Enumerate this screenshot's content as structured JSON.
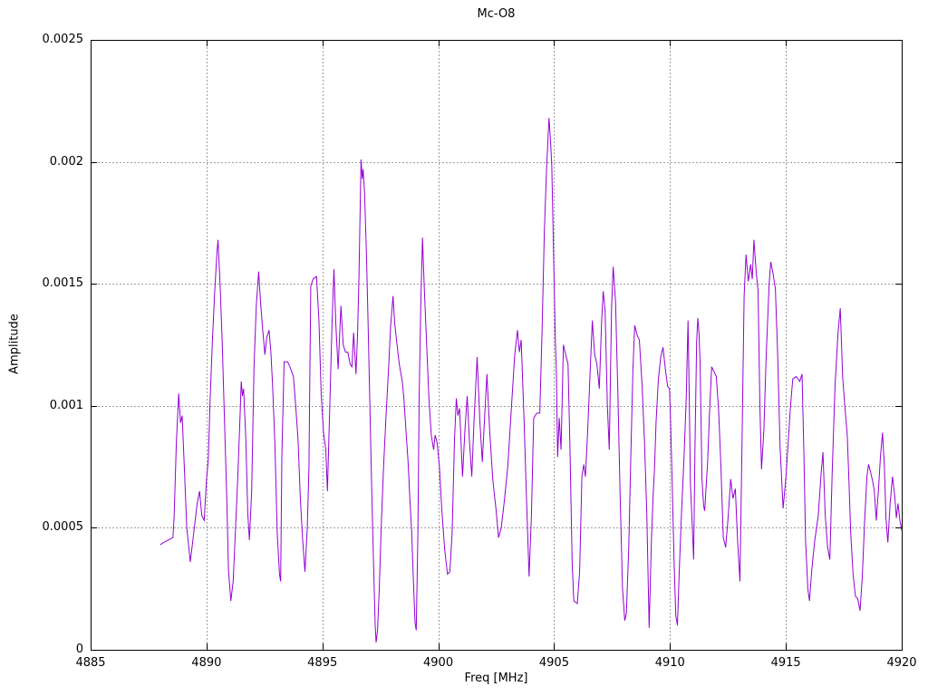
{
  "title": "Mc-O8",
  "chart_data": {
    "type": "line",
    "title": "Mc-O8",
    "xlabel": "Freq [MHz]",
    "ylabel": "Amplitude",
    "xlim": [
      4885,
      4920
    ],
    "ylim": [
      0,
      0.0025
    ],
    "x_ticks": [
      4885,
      4890,
      4895,
      4900,
      4905,
      4910,
      4915,
      4920
    ],
    "y_ticks": [
      0,
      0.0005,
      0.001,
      0.0015,
      0.002,
      0.0025
    ],
    "y_tick_labels": [
      "0",
      "0.0005",
      "0.001",
      "0.0015",
      "0.002",
      "0.0025"
    ],
    "grid": true,
    "grid_color": "#9e9e9e",
    "border_color": "#000000",
    "legend": false,
    "line_color": "#9400d3",
    "points": [
      [
        4888.0,
        0.00043
      ],
      [
        4888.15,
        0.00044
      ],
      [
        4888.35,
        0.00045
      ],
      [
        4888.55,
        0.00046
      ],
      [
        4888.6,
        0.00054
      ],
      [
        4888.7,
        0.00085
      ],
      [
        4888.8,
        0.00105
      ],
      [
        4888.88,
        0.00093
      ],
      [
        4888.95,
        0.00096
      ],
      [
        4889.05,
        0.00073
      ],
      [
        4889.15,
        0.0005
      ],
      [
        4889.3,
        0.00036
      ],
      [
        4889.45,
        0.00048
      ],
      [
        4889.6,
        0.0006
      ],
      [
        4889.7,
        0.00065
      ],
      [
        4889.8,
        0.00055
      ],
      [
        4889.9,
        0.00053
      ],
      [
        4890.0,
        0.0007
      ],
      [
        4890.08,
        0.00078
      ],
      [
        4890.15,
        0.00101
      ],
      [
        4890.25,
        0.00126
      ],
      [
        4890.35,
        0.00146
      ],
      [
        4890.45,
        0.00163
      ],
      [
        4890.5,
        0.00168
      ],
      [
        4890.58,
        0.00151
      ],
      [
        4890.68,
        0.00126
      ],
      [
        4890.78,
        0.00093
      ],
      [
        4890.88,
        0.0006
      ],
      [
        4890.95,
        0.00033
      ],
      [
        4891.05,
        0.0002
      ],
      [
        4891.15,
        0.00028
      ],
      [
        4891.25,
        0.00049
      ],
      [
        4891.35,
        0.00071
      ],
      [
        4891.45,
        0.00096
      ],
      [
        4891.5,
        0.0011
      ],
      [
        4891.55,
        0.00104
      ],
      [
        4891.6,
        0.00107
      ],
      [
        4891.7,
        0.00086
      ],
      [
        4891.78,
        0.00056
      ],
      [
        4891.85,
        0.00045
      ],
      [
        4891.95,
        0.00065
      ],
      [
        4892.05,
        0.00116
      ],
      [
        4892.15,
        0.00141
      ],
      [
        4892.25,
        0.00155
      ],
      [
        4892.33,
        0.00143
      ],
      [
        4892.42,
        0.00132
      ],
      [
        4892.52,
        0.00121
      ],
      [
        4892.6,
        0.00128
      ],
      [
        4892.7,
        0.00131
      ],
      [
        4892.78,
        0.00122
      ],
      [
        4892.85,
        0.00109
      ],
      [
        4892.95,
        0.00085
      ],
      [
        4893.05,
        0.00048
      ],
      [
        4893.15,
        0.00031
      ],
      [
        4893.2,
        0.00028
      ],
      [
        4893.25,
        0.00079
      ],
      [
        4893.35,
        0.00118
      ],
      [
        4893.5,
        0.00118
      ],
      [
        4893.6,
        0.00116
      ],
      [
        4893.75,
        0.00112
      ],
      [
        4893.85,
        0.001
      ],
      [
        4893.95,
        0.00086
      ],
      [
        4894.05,
        0.00062
      ],
      [
        4894.15,
        0.00045
      ],
      [
        4894.25,
        0.00032
      ],
      [
        4894.35,
        0.0005
      ],
      [
        4894.42,
        0.00075
      ],
      [
        4894.5,
        0.00149
      ],
      [
        4894.6,
        0.00152
      ],
      [
        4894.75,
        0.00153
      ],
      [
        4894.85,
        0.00135
      ],
      [
        4894.95,
        0.00105
      ],
      [
        4895.05,
        0.00089
      ],
      [
        4895.15,
        0.00082
      ],
      [
        4895.22,
        0.00065
      ],
      [
        4895.32,
        0.001
      ],
      [
        4895.42,
        0.00135
      ],
      [
        4895.5,
        0.00156
      ],
      [
        4895.58,
        0.00134
      ],
      [
        4895.68,
        0.00115
      ],
      [
        4895.8,
        0.00141
      ],
      [
        4895.9,
        0.00125
      ],
      [
        4896.0,
        0.00122
      ],
      [
        4896.1,
        0.00122
      ],
      [
        4896.2,
        0.00117
      ],
      [
        4896.28,
        0.00116
      ],
      [
        4896.35,
        0.0013
      ],
      [
        4896.45,
        0.00113
      ],
      [
        4896.52,
        0.0013
      ],
      [
        4896.58,
        0.00153
      ],
      [
        4896.62,
        0.00174
      ],
      [
        4896.67,
        0.00201
      ],
      [
        4896.72,
        0.00193
      ],
      [
        4896.76,
        0.00197
      ],
      [
        4896.82,
        0.00187
      ],
      [
        4896.9,
        0.00163
      ],
      [
        4896.97,
        0.00135
      ],
      [
        4897.05,
        0.00101
      ],
      [
        4897.12,
        0.0007
      ],
      [
        4897.2,
        0.00038
      ],
      [
        4897.28,
        0.0001
      ],
      [
        4897.32,
        3e-05
      ],
      [
        4897.38,
        8e-05
      ],
      [
        4897.45,
        0.00024
      ],
      [
        4897.55,
        0.00053
      ],
      [
        4897.65,
        0.00077
      ],
      [
        4897.75,
        0.00096
      ],
      [
        4897.85,
        0.00114
      ],
      [
        4897.95,
        0.00133
      ],
      [
        4898.05,
        0.00145
      ],
      [
        4898.12,
        0.00134
      ],
      [
        4898.2,
        0.00127
      ],
      [
        4898.32,
        0.00117
      ],
      [
        4898.45,
        0.0011
      ],
      [
        4898.52,
        0.00103
      ],
      [
        4898.62,
        0.00088
      ],
      [
        4898.7,
        0.00077
      ],
      [
        4898.78,
        0.00061
      ],
      [
        4898.85,
        0.00049
      ],
      [
        4898.92,
        0.0003
      ],
      [
        4899.0,
        0.00011
      ],
      [
        4899.05,
        8e-05
      ],
      [
        4899.12,
        0.00047
      ],
      [
        4899.18,
        0.00106
      ],
      [
        4899.25,
        0.00143
      ],
      [
        4899.32,
        0.00169
      ],
      [
        4899.4,
        0.00148
      ],
      [
        4899.5,
        0.00125
      ],
      [
        4899.6,
        0.00103
      ],
      [
        4899.7,
        0.00088
      ],
      [
        4899.8,
        0.00082
      ],
      [
        4899.87,
        0.00088
      ],
      [
        4899.95,
        0.00085
      ],
      [
        4900.05,
        0.00075
      ],
      [
        4900.15,
        0.00058
      ],
      [
        4900.28,
        0.00041
      ],
      [
        4900.4,
        0.00031
      ],
      [
        4900.5,
        0.00032
      ],
      [
        4900.6,
        0.00048
      ],
      [
        4900.7,
        0.00086
      ],
      [
        4900.78,
        0.00103
      ],
      [
        4900.85,
        0.00096
      ],
      [
        4900.92,
        0.00099
      ],
      [
        4901.05,
        0.00071
      ],
      [
        4901.15,
        0.0009
      ],
      [
        4901.25,
        0.00104
      ],
      [
        4901.35,
        0.00085
      ],
      [
        4901.45,
        0.00071
      ],
      [
        4901.55,
        0.00095
      ],
      [
        4901.68,
        0.0012
      ],
      [
        4901.8,
        0.00093
      ],
      [
        4901.9,
        0.00077
      ],
      [
        4902.0,
        0.00095
      ],
      [
        4902.1,
        0.00113
      ],
      [
        4902.22,
        0.0009
      ],
      [
        4902.35,
        0.0007
      ],
      [
        4902.5,
        0.00057
      ],
      [
        4902.6,
        0.00046
      ],
      [
        4902.72,
        0.0005
      ],
      [
        4902.85,
        0.00061
      ],
      [
        4903.0,
        0.00075
      ],
      [
        4903.15,
        0.00098
      ],
      [
        4903.3,
        0.00121
      ],
      [
        4903.42,
        0.00131
      ],
      [
        4903.5,
        0.00122
      ],
      [
        4903.58,
        0.00127
      ],
      [
        4903.7,
        0.00095
      ],
      [
        4903.8,
        0.00065
      ],
      [
        4903.92,
        0.0003
      ],
      [
        4904.02,
        0.00055
      ],
      [
        4904.12,
        0.00095
      ],
      [
        4904.25,
        0.00097
      ],
      [
        4904.38,
        0.00097
      ],
      [
        4904.48,
        0.0013
      ],
      [
        4904.58,
        0.00172
      ],
      [
        4904.68,
        0.00198
      ],
      [
        4904.78,
        0.00218
      ],
      [
        4904.85,
        0.00208
      ],
      [
        4904.9,
        0.00198
      ],
      [
        4904.97,
        0.00165
      ],
      [
        4905.05,
        0.00128
      ],
      [
        4905.1,
        0.00113
      ],
      [
        4905.15,
        0.00079
      ],
      [
        4905.22,
        0.00095
      ],
      [
        4905.3,
        0.00082
      ],
      [
        4905.4,
        0.00125
      ],
      [
        4905.5,
        0.00121
      ],
      [
        4905.6,
        0.00117
      ],
      [
        4905.68,
        0.00085
      ],
      [
        4905.78,
        0.00035
      ],
      [
        4905.85,
        0.0002
      ],
      [
        4906.0,
        0.00019
      ],
      [
        4906.1,
        0.00032
      ],
      [
        4906.2,
        0.00071
      ],
      [
        4906.28,
        0.00076
      ],
      [
        4906.35,
        0.00071
      ],
      [
        4906.45,
        0.0009
      ],
      [
        4906.55,
        0.00113
      ],
      [
        4906.65,
        0.00135
      ],
      [
        4906.75,
        0.00121
      ],
      [
        4906.85,
        0.00117
      ],
      [
        4906.95,
        0.00107
      ],
      [
        4907.05,
        0.00135
      ],
      [
        4907.12,
        0.00147
      ],
      [
        4907.2,
        0.00139
      ],
      [
        4907.3,
        0.001
      ],
      [
        4907.38,
        0.00082
      ],
      [
        4907.48,
        0.0014
      ],
      [
        4907.55,
        0.00157
      ],
      [
        4907.65,
        0.00143
      ],
      [
        4907.75,
        0.00105
      ],
      [
        4907.85,
        0.00063
      ],
      [
        4907.95,
        0.00025
      ],
      [
        4908.05,
        0.00012
      ],
      [
        4908.12,
        0.00015
      ],
      [
        4908.22,
        0.00042
      ],
      [
        4908.3,
        0.00075
      ],
      [
        4908.4,
        0.00115
      ],
      [
        4908.48,
        0.00133
      ],
      [
        4908.58,
        0.00129
      ],
      [
        4908.68,
        0.00127
      ],
      [
        4908.8,
        0.00108
      ],
      [
        4908.9,
        0.00085
      ],
      [
        4909.0,
        0.00056
      ],
      [
        4909.1,
        9e-05
      ],
      [
        4909.2,
        0.00045
      ],
      [
        4909.28,
        0.00065
      ],
      [
        4909.33,
        0.00074
      ],
      [
        4909.4,
        0.00093
      ],
      [
        4909.5,
        0.00111
      ],
      [
        4909.6,
        0.0012
      ],
      [
        4909.7,
        0.00124
      ],
      [
        4909.8,
        0.00115
      ],
      [
        4909.9,
        0.00108
      ],
      [
        4909.98,
        0.00107
      ],
      [
        4910.03,
        0.00092
      ],
      [
        4910.1,
        0.00067
      ],
      [
        4910.18,
        0.00035
      ],
      [
        4910.25,
        0.00014
      ],
      [
        4910.32,
        0.0001
      ],
      [
        4910.4,
        0.00032
      ],
      [
        4910.5,
        0.00057
      ],
      [
        4910.6,
        0.00077
      ],
      [
        4910.7,
        0.00103
      ],
      [
        4910.78,
        0.00135
      ],
      [
        4910.83,
        0.00105
      ],
      [
        4910.88,
        0.00069
      ],
      [
        4910.95,
        0.00053
      ],
      [
        4911.02,
        0.00037
      ],
      [
        4911.08,
        0.00084
      ],
      [
        4911.15,
        0.00126
      ],
      [
        4911.2,
        0.00136
      ],
      [
        4911.25,
        0.0013
      ],
      [
        4911.3,
        0.00118
      ],
      [
        4911.38,
        0.0007
      ],
      [
        4911.45,
        0.00059
      ],
      [
        4911.5,
        0.00057
      ],
      [
        4911.56,
        0.00067
      ],
      [
        4911.62,
        0.00076
      ],
      [
        4911.7,
        0.00096
      ],
      [
        4911.8,
        0.00116
      ],
      [
        4911.9,
        0.00114
      ],
      [
        4912.0,
        0.00112
      ],
      [
        4912.1,
        0.00098
      ],
      [
        4912.2,
        0.00075
      ],
      [
        4912.3,
        0.00046
      ],
      [
        4912.4,
        0.00042
      ],
      [
        4912.5,
        0.00053
      ],
      [
        4912.62,
        0.0007
      ],
      [
        4912.72,
        0.00062
      ],
      [
        4912.82,
        0.00066
      ],
      [
        4912.92,
        0.00044
      ],
      [
        4913.02,
        0.00028
      ],
      [
        4913.1,
        0.0008
      ],
      [
        4913.2,
        0.00145
      ],
      [
        4913.28,
        0.00162
      ],
      [
        4913.38,
        0.00151
      ],
      [
        4913.48,
        0.00158
      ],
      [
        4913.55,
        0.00152
      ],
      [
        4913.62,
        0.00168
      ],
      [
        4913.72,
        0.00155
      ],
      [
        4913.8,
        0.00147
      ],
      [
        4913.88,
        0.001
      ],
      [
        4913.95,
        0.00074
      ],
      [
        4914.05,
        0.0009
      ],
      [
        4914.15,
        0.0012
      ],
      [
        4914.28,
        0.0015
      ],
      [
        4914.35,
        0.00159
      ],
      [
        4914.45,
        0.00154
      ],
      [
        4914.55,
        0.00148
      ],
      [
        4914.65,
        0.0012
      ],
      [
        4914.75,
        0.00083
      ],
      [
        4914.88,
        0.00058
      ],
      [
        4915.0,
        0.0007
      ],
      [
        4915.1,
        0.00085
      ],
      [
        4915.2,
        0.001
      ],
      [
        4915.3,
        0.00111
      ],
      [
        4915.45,
        0.00112
      ],
      [
        4915.6,
        0.0011
      ],
      [
        4915.7,
        0.00113
      ],
      [
        4915.78,
        0.0008
      ],
      [
        4915.85,
        0.00045
      ],
      [
        4915.95,
        0.00025
      ],
      [
        4916.02,
        0.0002
      ],
      [
        4916.12,
        0.00033
      ],
      [
        4916.25,
        0.00045
      ],
      [
        4916.4,
        0.00055
      ],
      [
        4916.52,
        0.00072
      ],
      [
        4916.6,
        0.00081
      ],
      [
        4916.7,
        0.00055
      ],
      [
        4916.8,
        0.00042
      ],
      [
        4916.9,
        0.00037
      ],
      [
        4917.0,
        0.00073
      ],
      [
        4917.12,
        0.00108
      ],
      [
        4917.25,
        0.0013
      ],
      [
        4917.35,
        0.0014
      ],
      [
        4917.45,
        0.00112
      ],
      [
        4917.55,
        0.00099
      ],
      [
        4917.65,
        0.00088
      ],
      [
        4917.72,
        0.0007
      ],
      [
        4917.8,
        0.00048
      ],
      [
        4917.9,
        0.00031
      ],
      [
        4918.0,
        0.00022
      ],
      [
        4918.1,
        0.00021
      ],
      [
        4918.2,
        0.00016
      ],
      [
        4918.3,
        0.0003
      ],
      [
        4918.4,
        0.00053
      ],
      [
        4918.5,
        0.00071
      ],
      [
        4918.57,
        0.00076
      ],
      [
        4918.65,
        0.00073
      ],
      [
        4918.75,
        0.00069
      ],
      [
        4918.82,
        0.00065
      ],
      [
        4918.9,
        0.00053
      ],
      [
        4919.0,
        0.00066
      ],
      [
        4919.08,
        0.00079
      ],
      [
        4919.17,
        0.00089
      ],
      [
        4919.25,
        0.00076
      ],
      [
        4919.32,
        0.00054
      ],
      [
        4919.4,
        0.00044
      ],
      [
        4919.5,
        0.0006
      ],
      [
        4919.6,
        0.00071
      ],
      [
        4919.7,
        0.00063
      ],
      [
        4919.77,
        0.00054
      ],
      [
        4919.84,
        0.0006
      ],
      [
        4919.92,
        0.00053
      ],
      [
        4920.0,
        0.00049
      ]
    ]
  }
}
